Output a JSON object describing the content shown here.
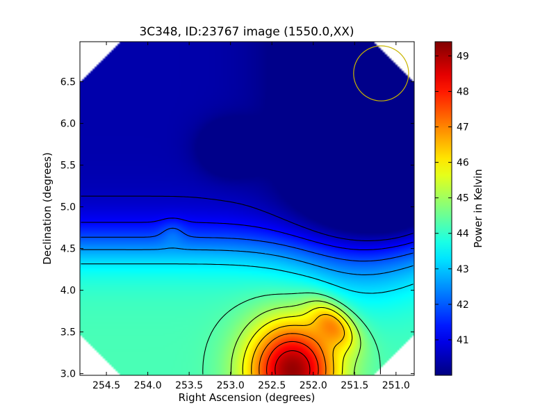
{
  "chart_data": {
    "type": "heatmap",
    "title": "3C348, ID:23767 image (1550.0,XX)",
    "xlabel": "Right Ascension (degrees)",
    "ylabel": "Declination (degrees)",
    "xlim": [
      254.82,
      250.78
    ],
    "ylim": [
      2.98,
      6.98
    ],
    "x_ticks": [
      254.5,
      254.0,
      253.5,
      253.0,
      252.5,
      252.0,
      251.5,
      251.0
    ],
    "x_tick_labels": [
      "254.5",
      "254.0",
      "253.5",
      "253.0",
      "252.5",
      "252.0",
      "251.5",
      "251.0"
    ],
    "y_ticks": [
      3.0,
      3.5,
      4.0,
      4.5,
      5.0,
      5.5,
      6.0,
      6.5
    ],
    "y_tick_labels": [
      "3.0",
      "3.5",
      "4.0",
      "4.5",
      "5.0",
      "5.5",
      "6.0",
      "6.5"
    ],
    "colormap": "jet",
    "colorbar": {
      "label": "Power in Kelvin",
      "vmin": 40.0,
      "vmax": 49.4,
      "ticks": [
        41,
        42,
        43,
        44,
        45,
        46,
        47,
        48,
        49
      ],
      "tick_labels": [
        "41",
        "42",
        "43",
        "44",
        "45",
        "46",
        "47",
        "48",
        "49"
      ]
    },
    "features": {
      "peak": {
        "ra": 252.25,
        "dec": 3.05,
        "value": 49.2
      },
      "minimum": {
        "ra": 251.0,
        "dec": 5.1,
        "value": 40.2
      },
      "secondary_minimum": {
        "ra": 253.0,
        "dec": 5.7,
        "value": 40.6
      },
      "background_level": 44.2
    },
    "beam_circle": {
      "ra": 251.18,
      "dec": 6.6,
      "radius_deg": 0.33,
      "color": "#c8b400"
    },
    "contour_color": "#000000"
  }
}
